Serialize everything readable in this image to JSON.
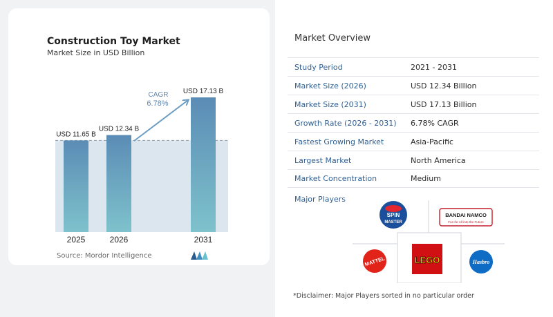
{
  "chart": {
    "title": "Construction Toy Market",
    "subtitle": "Market Size in USD Billion",
    "source": "Source: Mordor Intelligence",
    "cagr_label": "CAGR",
    "cagr_value": "6.78%"
  },
  "chart_data": {
    "type": "bar",
    "categories": [
      "2025",
      "2026",
      "2031"
    ],
    "values": [
      11.65,
      12.34,
      17.13
    ],
    "data_labels": [
      "USD 11.65 B",
      "USD 12.34 B",
      "USD 17.13 B"
    ],
    "title": "Construction Toy Market",
    "subtitle": "Market Size in USD Billion",
    "xlabel": "",
    "ylabel": "",
    "ylim": [
      0,
      17.13
    ],
    "grid": false,
    "annotations": [
      "CAGR 6.78%"
    ],
    "colors": {
      "bar_top": "#5b8cb5",
      "bar_bottom": "#7ec2cc",
      "band": "#dce6ef",
      "arrow": "#6a9cc4",
      "cagr_text": "#5f86b0"
    }
  },
  "overview": {
    "title": "Market Overview",
    "rows": [
      {
        "key": "Study Period",
        "value": "2021 - 2031"
      },
      {
        "key": "Market Size (2026)",
        "value": "USD 12.34 Billion"
      },
      {
        "key": "Market Size (2031)",
        "value": "USD 17.13 Billion"
      },
      {
        "key": "Growth Rate (2026 - 2031)",
        "value": "6.78% CAGR"
      },
      {
        "key": "Fastest Growing Market",
        "value": "Asia-Pacific"
      },
      {
        "key": "Largest Market",
        "value": "North America"
      },
      {
        "key": "Market Concentration",
        "value": "Medium"
      }
    ]
  },
  "players": {
    "title": "Major Players",
    "disclaimer": "*Disclaimer: Major Players sorted in no particular order",
    "logos": [
      {
        "name": "spin-master-logo",
        "lines": [
          "SPIN",
          "MASTER"
        ],
        "color": "#1b4f9c"
      },
      {
        "name": "bandai-namco-logo",
        "lines": [
          "BANDAI NAMCO",
          "Fun for All into the Future"
        ],
        "color": "#c41e2a"
      },
      {
        "name": "mattel-logo",
        "lines": [
          "MATTEL"
        ],
        "color": "#e2231a"
      },
      {
        "name": "lego-logo",
        "lines": [
          "LEGO"
        ],
        "color": "#d01012"
      },
      {
        "name": "hasbro-logo",
        "lines": [
          "Hasbro"
        ],
        "color": "#0f6cc4"
      }
    ]
  }
}
